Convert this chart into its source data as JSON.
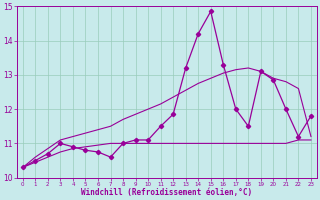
{
  "x": [
    0,
    1,
    2,
    3,
    4,
    5,
    6,
    7,
    8,
    9,
    10,
    11,
    12,
    13,
    14,
    15,
    16,
    17,
    18,
    19,
    20,
    21,
    22,
    23
  ],
  "y_main": [
    10.3,
    10.5,
    10.7,
    11.0,
    10.9,
    10.8,
    10.75,
    10.6,
    11.0,
    11.1,
    11.1,
    11.5,
    11.85,
    13.2,
    14.2,
    14.85,
    13.3,
    12.0,
    11.5,
    13.1,
    12.85,
    12.0,
    11.2,
    11.8
  ],
  "y_linear": [
    10.3,
    10.6,
    10.85,
    11.1,
    11.2,
    11.3,
    11.4,
    11.5,
    11.7,
    11.85,
    12.0,
    12.15,
    12.35,
    12.55,
    12.75,
    12.9,
    13.05,
    13.15,
    13.2,
    13.1,
    12.9,
    12.8,
    12.6,
    11.2
  ],
  "y_flat": [
    10.3,
    10.45,
    10.6,
    10.75,
    10.85,
    10.9,
    10.95,
    11.0,
    11.0,
    11.0,
    11.0,
    11.0,
    11.0,
    11.0,
    11.0,
    11.0,
    11.0,
    11.0,
    11.0,
    11.0,
    11.0,
    11.0,
    11.1,
    11.1
  ],
  "xlim": [
    -0.5,
    23.5
  ],
  "ylim": [
    10.0,
    15.0
  ],
  "yticks": [
    10,
    11,
    12,
    13,
    14,
    15
  ],
  "xticks": [
    0,
    1,
    2,
    3,
    4,
    5,
    6,
    7,
    8,
    9,
    10,
    11,
    12,
    13,
    14,
    15,
    16,
    17,
    18,
    19,
    20,
    21,
    22,
    23
  ],
  "xlabel": "Windchill (Refroidissement éolien,°C)",
  "line_color": "#990099",
  "bg_color": "#c8eaeb",
  "grid_color": "#99ccbb",
  "marker": "D",
  "marker_size": 2.2,
  "lw_main": 0.9,
  "lw_other": 0.8
}
